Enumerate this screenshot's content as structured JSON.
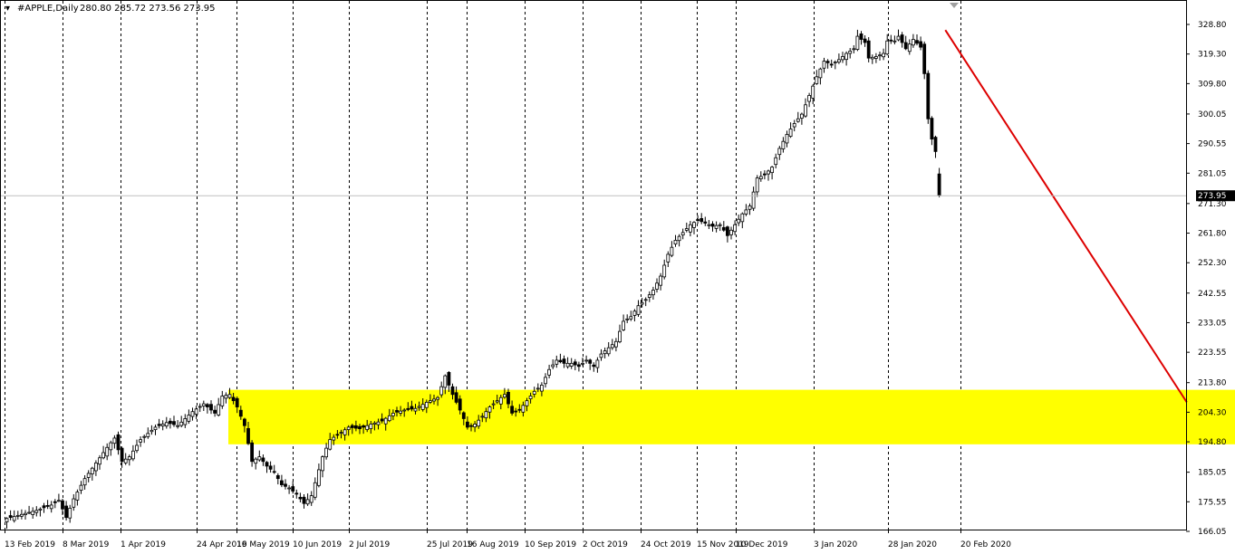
{
  "header": {
    "symbol_text": "#APPLE,Daily",
    "ohlc_text": "280.80 285.72 273.56 273.95"
  },
  "colors": {
    "background": "#ffffff",
    "candle": "#000000",
    "zone": "#ffff00",
    "trendline": "#dd0000",
    "last_price_bg": "#000000"
  },
  "chart_data": {
    "type": "candlestick",
    "symbol": "#APPLE",
    "timeframe": "Daily",
    "ylim": [
      166.05,
      331.0
    ],
    "y_ticks": [
      328.8,
      319.3,
      309.8,
      300.05,
      290.55,
      281.05,
      271.3,
      261.8,
      252.3,
      242.55,
      233.05,
      223.55,
      213.8,
      204.3,
      194.8,
      185.05,
      175.55,
      166.05
    ],
    "y_tick_labels": [
      "328.80",
      "319.30",
      "309.80",
      "300.05",
      "290.55",
      "281.05",
      "271.30",
      "261.80",
      "252.30",
      "242.55",
      "233.05",
      "223.55",
      "213.80",
      "204.30",
      "194.80",
      "185.05",
      "175.55",
      "166.05"
    ],
    "x_tick_labels": [
      "13 Feb 2019",
      "8 Mar 2019",
      "1 Apr 2019",
      "24 Apr 2019",
      "16 May 2019",
      "10 Jun 2019",
      "2 Jul 2019",
      "25 Jul 2019",
      "16 Aug 2019",
      "10 Sep 2019",
      "2 Oct 2019",
      "24 Oct 2019",
      "15 Nov 2019",
      "10 Dec 2019",
      "3 Jan 2020",
      "28 Jan 2020",
      "20 Feb 2020"
    ],
    "last_price": 273.95,
    "last_price_label": "273.95",
    "grid": "vertical dashed period separators",
    "waypoints": [
      [
        0,
        170.2
      ],
      [
        4,
        171.5
      ],
      [
        8,
        172.8
      ],
      [
        12,
        174.5
      ],
      [
        14,
        176.0
      ],
      [
        16,
        170.5
      ],
      [
        18,
        176.5
      ],
      [
        21,
        183.0
      ],
      [
        24,
        188.0
      ],
      [
        27,
        193.0
      ],
      [
        29,
        196.0
      ],
      [
        31,
        188.5
      ],
      [
        33,
        190.0
      ],
      [
        36,
        195.5
      ],
      [
        40,
        199.5
      ],
      [
        43,
        201.0
      ],
      [
        46,
        200.0
      ],
      [
        50,
        204.5
      ],
      [
        53,
        207.0
      ],
      [
        56,
        204.0
      ],
      [
        58,
        209.5
      ],
      [
        60,
        210.0
      ],
      [
        62,
        206.0
      ],
      [
        64,
        200.0
      ],
      [
        66,
        188.5
      ],
      [
        68,
        190.0
      ],
      [
        70,
        187.0
      ],
      [
        72,
        185.0
      ],
      [
        74,
        181.0
      ],
      [
        76,
        180.0
      ],
      [
        78,
        178.0
      ],
      [
        80,
        175.0
      ],
      [
        82,
        177.5
      ],
      [
        85,
        190.0
      ],
      [
        87,
        195.5
      ],
      [
        89,
        197.0
      ],
      [
        92,
        199.5
      ],
      [
        95,
        199.0
      ],
      [
        98,
        200.5
      ],
      [
        101,
        201.5
      ],
      [
        104,
        204.0
      ],
      [
        107,
        205.0
      ],
      [
        110,
        205.5
      ],
      [
        113,
        207.5
      ],
      [
        116,
        209.0
      ],
      [
        118,
        216.0
      ],
      [
        120,
        210.0
      ],
      [
        122,
        205.0
      ],
      [
        124,
        199.5
      ],
      [
        126,
        200.5
      ],
      [
        128,
        203.0
      ],
      [
        130,
        206.0
      ],
      [
        132,
        208.0
      ],
      [
        134,
        210.0
      ],
      [
        136,
        204.0
      ],
      [
        138,
        205.0
      ],
      [
        140,
        208.0
      ],
      [
        142,
        211.0
      ],
      [
        144,
        213.0
      ],
      [
        146,
        218.0
      ],
      [
        148,
        221.0
      ],
      [
        150,
        220.0
      ],
      [
        152,
        220.0
      ],
      [
        154,
        219.0
      ],
      [
        156,
        221.0
      ],
      [
        158,
        219.0
      ],
      [
        160,
        223.0
      ],
      [
        162,
        225.0
      ],
      [
        164,
        227.0
      ],
      [
        166,
        233.5
      ],
      [
        168,
        235.0
      ],
      [
        170,
        238.5
      ],
      [
        172,
        240.5
      ],
      [
        174,
        243.5
      ],
      [
        176,
        248.0
      ],
      [
        178,
        255.0
      ],
      [
        180,
        259.5
      ],
      [
        182,
        262.0
      ],
      [
        184,
        264.5
      ],
      [
        186,
        266.0
      ],
      [
        188,
        265.0
      ],
      [
        190,
        264.0
      ],
      [
        192,
        264.5
      ],
      [
        194,
        261.0
      ],
      [
        196,
        264.5
      ],
      [
        198,
        268.0
      ],
      [
        200,
        270.5
      ],
      [
        202,
        279.5
      ],
      [
        204,
        280.5
      ],
      [
        206,
        283.0
      ],
      [
        208,
        289.0
      ],
      [
        210,
        293.5
      ],
      [
        212,
        297.0
      ],
      [
        214,
        300.0
      ],
      [
        216,
        306.0
      ],
      [
        218,
        312.0
      ],
      [
        220,
        317.0
      ],
      [
        222,
        316.0
      ],
      [
        224,
        317.5
      ],
      [
        226,
        319.5
      ],
      [
        228,
        321.0
      ],
      [
        229,
        325.0
      ],
      [
        231,
        323.0
      ],
      [
        232,
        318.0
      ],
      [
        234,
        318.5
      ],
      [
        236,
        319.5
      ],
      [
        237,
        323.5
      ],
      [
        239,
        323.5
      ],
      [
        240,
        325.0
      ],
      [
        242,
        321.0
      ],
      [
        244,
        324.0
      ],
      [
        246,
        321.5
      ],
      [
        247,
        313.0
      ],
      [
        248,
        298.5
      ],
      [
        249,
        292.0
      ],
      [
        250,
        288.0
      ],
      [
        251,
        273.95
      ]
    ],
    "annotations": [
      {
        "type": "rectangle",
        "name": "support-zone",
        "color": "#ffff00",
        "x_from_bar": 60,
        "x_to_bar": 351,
        "y_from": 194.0,
        "y_to": 211.5
      },
      {
        "type": "trendline",
        "name": "projection-line",
        "color": "#dd0000",
        "from_bar": 253,
        "from_price": 327.0,
        "to_bar": 318,
        "to_price": 207.5
      }
    ]
  }
}
